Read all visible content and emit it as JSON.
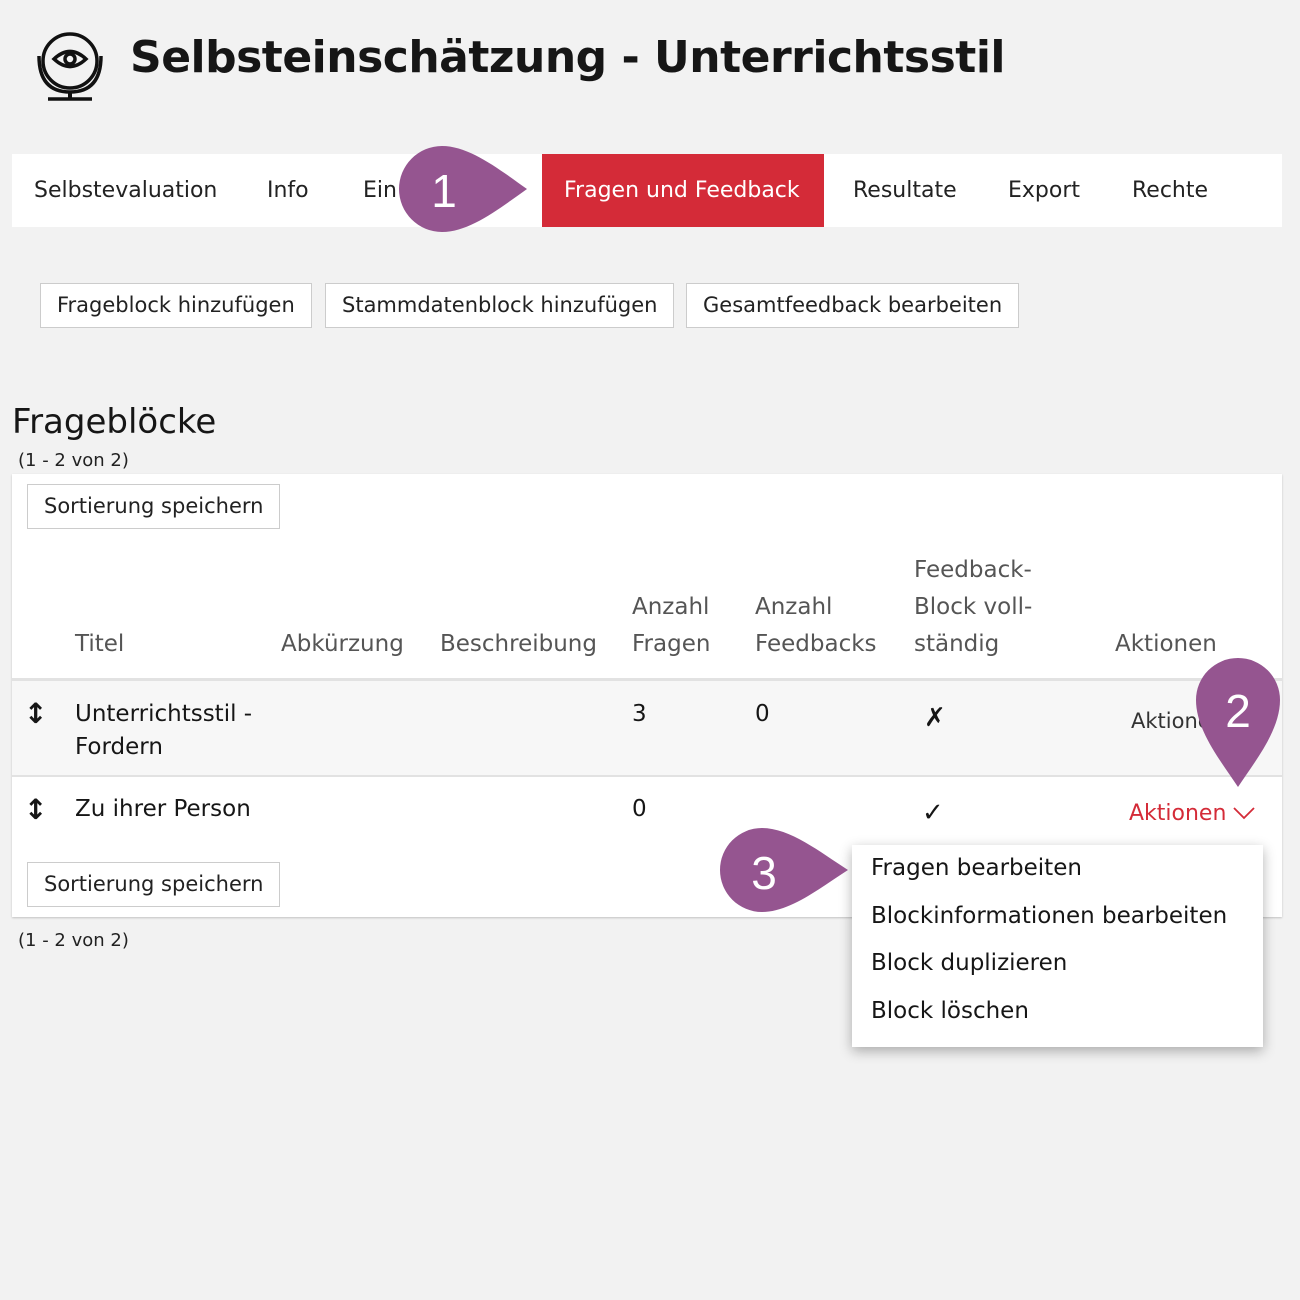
{
  "header": {
    "title": "Selbsteinschätzung - Unterrichtsstil",
    "icon": "mirror-eye-icon"
  },
  "tabs": [
    {
      "label": "Selbstevaluation"
    },
    {
      "label": "Info"
    },
    {
      "label": "Ein"
    },
    {
      "label": "Fragen und Feedback",
      "active": true
    },
    {
      "label": "Resultate"
    },
    {
      "label": "Export"
    },
    {
      "label": "Rechte"
    }
  ],
  "toolbar": {
    "add_block": "Frageblock hinzufügen",
    "add_master": "Stammdatenblock hinzufügen",
    "edit_feedback": "Gesamtfeedback bearbeiten"
  },
  "section": {
    "title": "Frageblöcke",
    "count_top": "(1 - 2 von 2)",
    "count_bottom": "(1 - 2 von 2)",
    "save_sort": "Sortierung speichern"
  },
  "table": {
    "headers": {
      "title": "Titel",
      "abbr": "Abkürzung",
      "desc": "Beschreibung",
      "q1": "Anzahl",
      "q2": "Fragen",
      "f1": "Anzahl",
      "f2": "Feedbacks",
      "c1": "Feedback-",
      "c2": "Block voll-",
      "c3": "ständig",
      "actions": "Aktionen"
    },
    "rows": [
      {
        "title1": "Unterrichtsstil -",
        "title2": "Fordern",
        "questions": "3",
        "feedbacks": "0",
        "complete": false,
        "actions": "Aktionen"
      },
      {
        "title1": "Zu ihrer Person",
        "questions": "0",
        "feedbacks": "",
        "complete": true,
        "actions": "Aktionen"
      }
    ]
  },
  "menu": {
    "items": [
      "Fragen bearbeiten",
      "Blockinformationen bearbeiten",
      "Block duplizieren",
      "Block löschen"
    ]
  },
  "markers": [
    "1",
    "2",
    "3"
  ],
  "colors": {
    "accent": "#d42b38",
    "marker": "#955590"
  }
}
